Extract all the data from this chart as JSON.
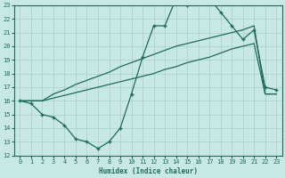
{
  "xlabel": "Humidex (Indice chaleur)",
  "xlim": [
    -0.5,
    23.5
  ],
  "ylim": [
    12,
    23
  ],
  "xticks": [
    0,
    1,
    2,
    3,
    4,
    5,
    6,
    7,
    8,
    9,
    10,
    11,
    12,
    13,
    14,
    15,
    16,
    17,
    18,
    19,
    20,
    21,
    22,
    23
  ],
  "yticks": [
    12,
    13,
    14,
    15,
    16,
    17,
    18,
    19,
    20,
    21,
    22,
    23
  ],
  "bg_color": "#c8e8e4",
  "line_color": "#1e6b5e",
  "grid_color": "#aacfcc",
  "line1_x": [
    0,
    1,
    2,
    3,
    4,
    5,
    6,
    7,
    8,
    9,
    10,
    11,
    12,
    13,
    14,
    15,
    16,
    17,
    18,
    19,
    20,
    21,
    22,
    23
  ],
  "line1_y": [
    16.0,
    16.0,
    16.0,
    16.2,
    16.4,
    16.6,
    16.8,
    17.0,
    17.2,
    17.4,
    17.6,
    17.8,
    18.0,
    18.3,
    18.5,
    18.8,
    19.0,
    19.2,
    19.5,
    19.8,
    20.0,
    20.2,
    16.5,
    16.5
  ],
  "line2_x": [
    0,
    1,
    2,
    3,
    4,
    5,
    6,
    7,
    8,
    9,
    10,
    11,
    12,
    13,
    14,
    15,
    16,
    17,
    18,
    19,
    20,
    21,
    22,
    23
  ],
  "line2_y": [
    16.0,
    16.0,
    16.0,
    16.5,
    16.8,
    17.2,
    17.5,
    17.8,
    18.1,
    18.5,
    18.8,
    19.1,
    19.4,
    19.7,
    20.0,
    20.2,
    20.4,
    20.6,
    20.8,
    21.0,
    21.2,
    21.5,
    16.5,
    16.5
  ],
  "line3_x": [
    0,
    1,
    2,
    3,
    4,
    5,
    6,
    7,
    8,
    9,
    10,
    11,
    12,
    13,
    14,
    15,
    16,
    17,
    18,
    19,
    20,
    21,
    22,
    23
  ],
  "line3_y": [
    16.0,
    15.8,
    15.0,
    14.8,
    14.2,
    13.2,
    13.0,
    12.5,
    13.0,
    14.0,
    16.5,
    19.2,
    21.5,
    21.5,
    23.5,
    23.0,
    23.3,
    23.5,
    22.5,
    21.5,
    20.5,
    21.2,
    17.0,
    16.8
  ]
}
